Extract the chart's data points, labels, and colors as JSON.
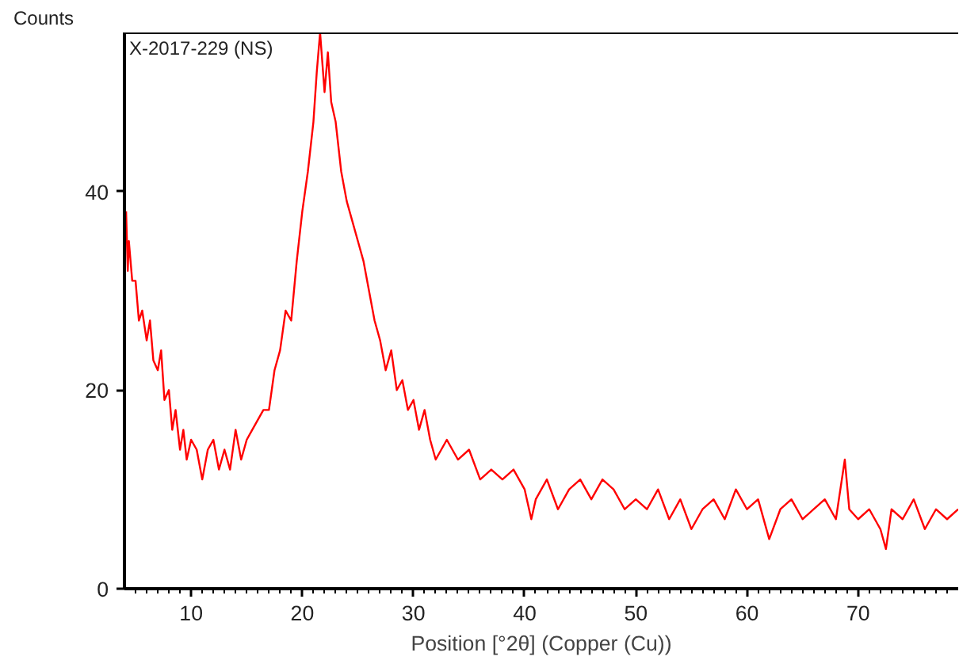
{
  "chart_data": {
    "type": "line",
    "xlabel": "Position [°2θ] (Copper (Cu))",
    "ylabel": "Counts",
    "annotations": [
      "X-2017-229 (NS)"
    ],
    "xlim": [
      4,
      79
    ],
    "ylim": [
      0,
      56
    ],
    "xticks": [
      10,
      20,
      30,
      40,
      50,
      60,
      70,
      {
        "value": 5,
        "label": null
      },
      {
        "value": 6,
        "label": null
      },
      {
        "value": 7,
        "label": null
      },
      {
        "value": 8,
        "label": null
      },
      {
        "value": 9,
        "label": null
      },
      {
        "value": 11,
        "label": null
      },
      {
        "value": 12,
        "label": null
      },
      {
        "value": 13,
        "label": null
      },
      {
        "value": 14,
        "label": null
      },
      {
        "value": 15,
        "label": null
      },
      {
        "value": 16,
        "label": null
      },
      {
        "value": 17,
        "label": null
      },
      {
        "value": 18,
        "label": null
      },
      {
        "value": 19,
        "label": null
      },
      {
        "value": 21,
        "label": null
      },
      {
        "value": 22,
        "label": null
      },
      {
        "value": 23,
        "label": null
      },
      {
        "value": 24,
        "label": null
      },
      {
        "value": 25,
        "label": null
      },
      {
        "value": 26,
        "label": null
      },
      {
        "value": 27,
        "label": null
      },
      {
        "value": 28,
        "label": null
      },
      {
        "value": 29,
        "label": null
      },
      {
        "value": 31,
        "label": null
      },
      {
        "value": 32,
        "label": null
      },
      {
        "value": 33,
        "label": null
      },
      {
        "value": 34,
        "label": null
      },
      {
        "value": 35,
        "label": null
      },
      {
        "value": 36,
        "label": null
      },
      {
        "value": 37,
        "label": null
      },
      {
        "value": 38,
        "label": null
      },
      {
        "value": 39,
        "label": null
      },
      {
        "value": 41,
        "label": null
      },
      {
        "value": 42,
        "label": null
      },
      {
        "value": 43,
        "label": null
      },
      {
        "value": 44,
        "label": null
      },
      {
        "value": 45,
        "label": null
      },
      {
        "value": 46,
        "label": null
      },
      {
        "value": 47,
        "label": null
      },
      {
        "value": 48,
        "label": null
      },
      {
        "value": 49,
        "label": null
      },
      {
        "value": 51,
        "label": null
      },
      {
        "value": 52,
        "label": null
      },
      {
        "value": 53,
        "label": null
      },
      {
        "value": 54,
        "label": null
      },
      {
        "value": 55,
        "label": null
      },
      {
        "value": 56,
        "label": null
      },
      {
        "value": 57,
        "label": null
      },
      {
        "value": 58,
        "label": null
      },
      {
        "value": 59,
        "label": null
      },
      {
        "value": 61,
        "label": null
      },
      {
        "value": 62,
        "label": null
      },
      {
        "value": 63,
        "label": null
      },
      {
        "value": 64,
        "label": null
      },
      {
        "value": 65,
        "label": null
      },
      {
        "value": 66,
        "label": null
      },
      {
        "value": 67,
        "label": null
      },
      {
        "value": 68,
        "label": null
      },
      {
        "value": 69,
        "label": null
      },
      {
        "value": 71,
        "label": null
      },
      {
        "value": 72,
        "label": null
      },
      {
        "value": 73,
        "label": null
      },
      {
        "value": 74,
        "label": null
      },
      {
        "value": 75,
        "label": null
      },
      {
        "value": 76,
        "label": null
      },
      {
        "value": 77,
        "label": null
      },
      {
        "value": 78,
        "label": null
      }
    ],
    "yticks": [
      0,
      20,
      40
    ],
    "grid": false,
    "marker": "none",
    "line_style": "solid",
    "x": [
      4.15,
      4.3,
      4.4,
      4.7,
      5,
      5.3,
      5.6,
      6,
      6.3,
      6.6,
      7,
      7.3,
      7.6,
      8,
      8.3,
      8.6,
      9,
      9.3,
      9.6,
      10,
      10.5,
      11,
      11.5,
      12,
      12.5,
      13,
      13.5,
      14,
      14.5,
      15,
      15.5,
      16,
      16.5,
      17,
      17.5,
      18,
      18.5,
      19,
      19.5,
      20,
      20.5,
      21,
      21.3,
      21.6,
      22,
      22.3,
      22.6,
      23,
      23.5,
      24,
      24.5,
      25,
      25.5,
      26,
      26.5,
      27,
      27.5,
      28,
      28.5,
      29,
      29.5,
      30,
      30.5,
      31,
      31.5,
      32,
      33,
      34,
      35,
      36,
      37,
      38,
      39,
      40,
      40.6,
      41,
      42,
      43,
      44,
      45,
      46,
      47,
      48,
      49,
      50,
      51,
      52,
      53,
      54,
      55,
      56,
      57,
      58,
      59,
      60,
      61,
      62,
      63,
      64,
      65,
      66,
      67,
      68,
      68.8,
      69.2,
      70,
      71,
      72,
      72.5,
      73,
      74,
      75,
      76,
      77,
      78,
      79
    ],
    "series": [
      {
        "color": "#ff0000",
        "values": [
          38,
          32,
          35,
          31,
          31,
          27,
          28,
          25,
          27,
          23,
          22,
          24,
          19,
          20,
          16,
          18,
          14,
          16,
          13,
          15,
          14,
          11,
          14,
          15,
          12,
          14,
          12,
          16,
          13,
          15,
          16,
          17,
          18,
          18,
          22,
          24,
          28,
          27,
          33,
          38,
          42,
          47,
          52,
          56,
          50,
          54,
          49,
          47,
          42,
          39,
          37,
          35,
          33,
          30,
          27,
          25,
          22,
          24,
          20,
          21,
          18,
          19,
          16,
          18,
          15,
          13,
          15,
          13,
          14,
          11,
          12,
          11,
          12,
          10,
          7,
          9,
          11,
          8,
          10,
          11,
          9,
          11,
          10,
          8,
          9,
          8,
          10,
          7,
          9,
          6,
          8,
          9,
          7,
          10,
          8,
          9,
          5,
          8,
          9,
          7,
          8,
          9,
          7,
          13,
          8,
          7,
          8,
          6,
          4,
          8,
          7,
          9,
          6,
          8,
          7,
          8
        ]
      }
    ]
  }
}
